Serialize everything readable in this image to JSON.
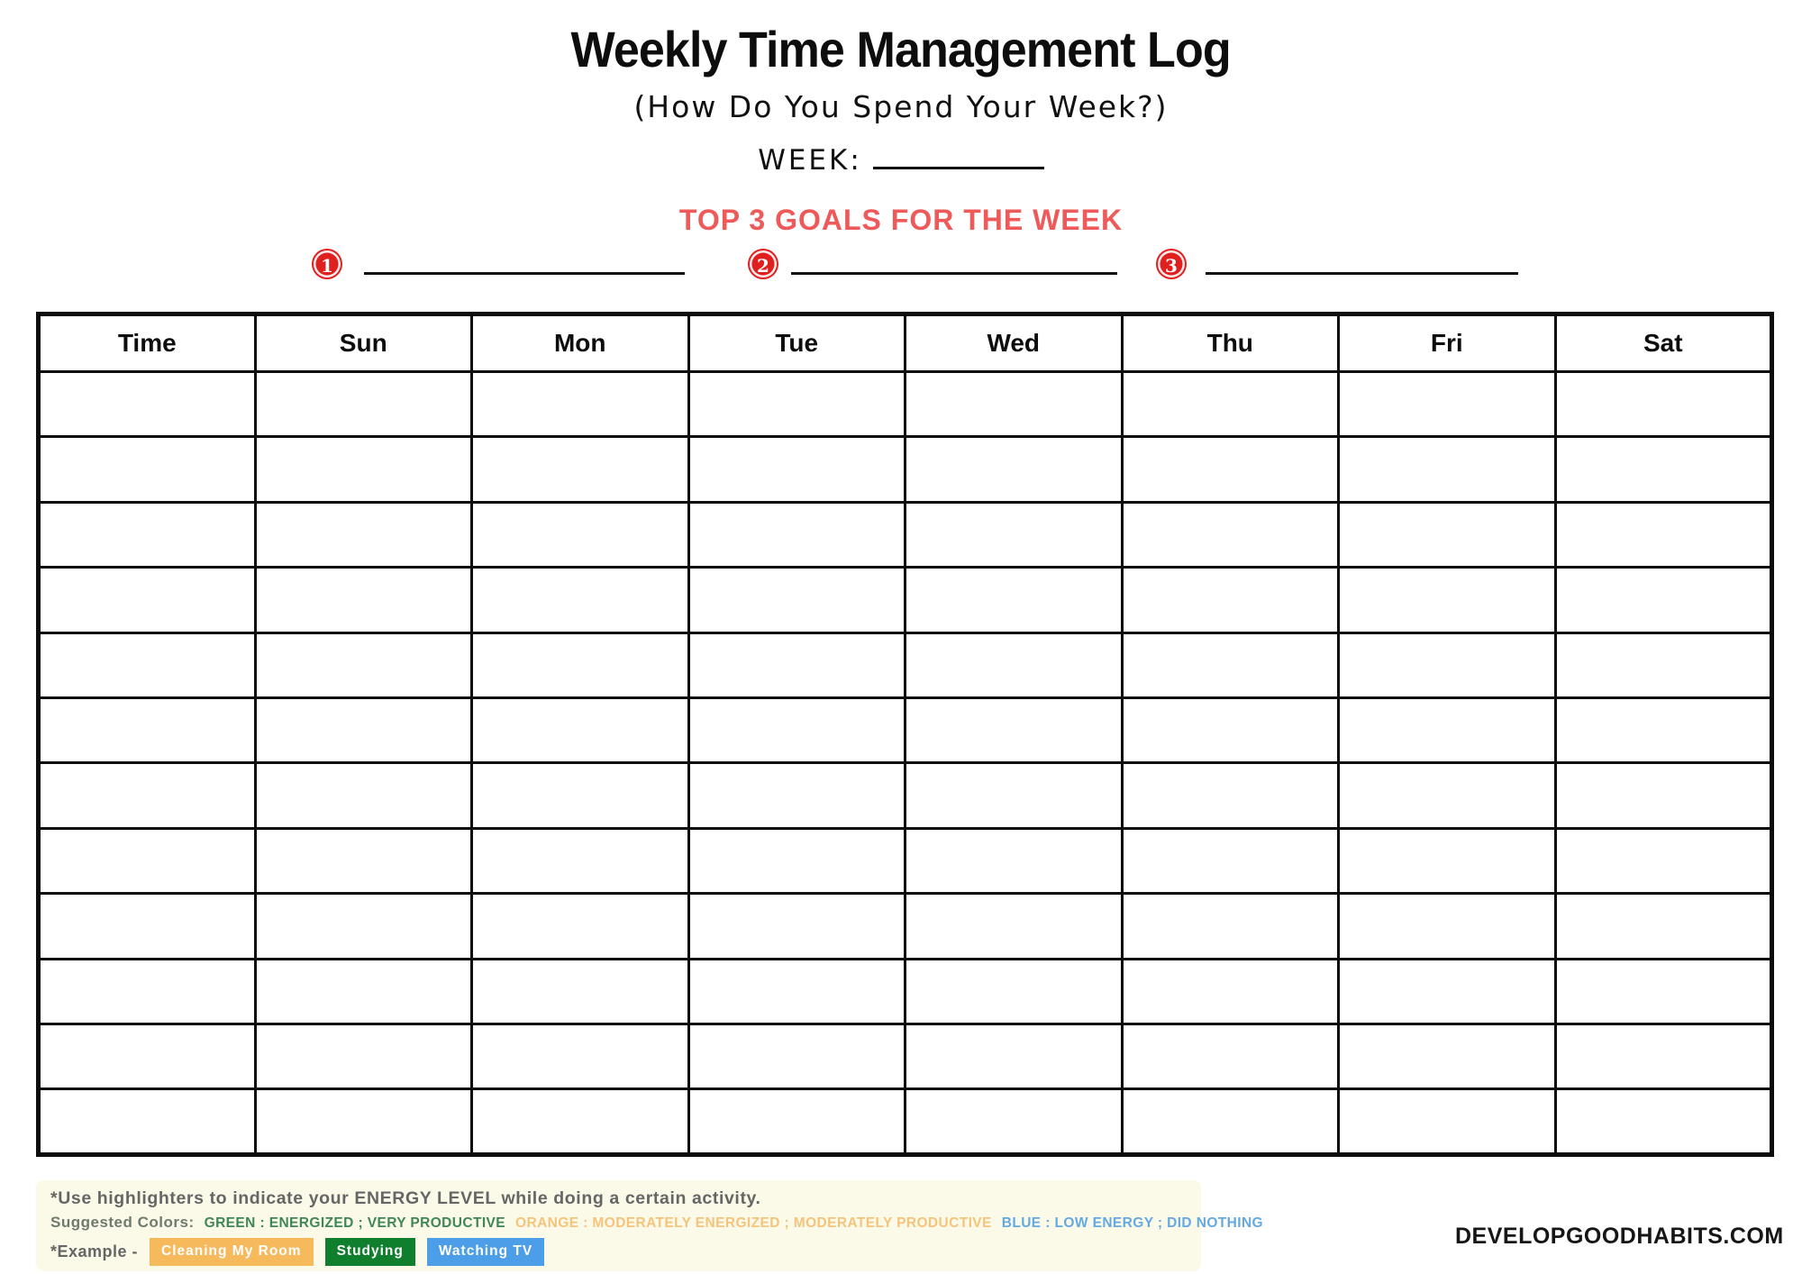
{
  "page": {
    "title": "Weekly Time Management Log",
    "subtitle": "(How Do You Spend Your Week?)",
    "week_label": "WEEK:",
    "goals_heading": "TOP 3 GOALS FOR THE WEEK",
    "goals": [
      {
        "number": "1"
      },
      {
        "number": "2"
      },
      {
        "number": "3"
      }
    ],
    "brand": "DEVELOPGOODHABITS.COM"
  },
  "log_table": {
    "columns": [
      "Time",
      "Sun",
      "Mon",
      "Tue",
      "Wed",
      "Thu",
      "Fri",
      "Sat"
    ],
    "body_rows": 12
  },
  "notes": {
    "highlighter_note": "*Use highlighters to indicate your ENERGY LEVEL while doing a certain activity.",
    "suggested_colors_label": "Suggested Colors:",
    "suggested_colors": [
      {
        "name": "green",
        "text": "GREEN : ENERGIZED ; VERY PRODUCTIVE",
        "color": "#3f8659"
      },
      {
        "name": "orange",
        "text": "ORANGE : MODERATELY ENERGIZED ; MODERATELY PRODUCTIVE",
        "color": "#f4c47c"
      },
      {
        "name": "blue",
        "text": "BLUE : LOW ENERGY ; DID NOTHING",
        "color": "#64a9e0"
      }
    ],
    "example_label": "*Example -",
    "example_badges": [
      {
        "name": "cleaning-my-room",
        "text": "Cleaning My Room",
        "bg": "#f6b95c"
      },
      {
        "name": "studying",
        "text": "Studying",
        "bg": "#0f7f2e"
      },
      {
        "name": "watching-tv",
        "text": "Watching TV",
        "bg": "#4b9ee7"
      }
    ]
  },
  "colors": {
    "accent_red": "#ee5a5a",
    "circle_red": "#e01f1f",
    "note_bg": "#fbfae8",
    "note_text": "#666666",
    "ink": "#111111"
  }
}
